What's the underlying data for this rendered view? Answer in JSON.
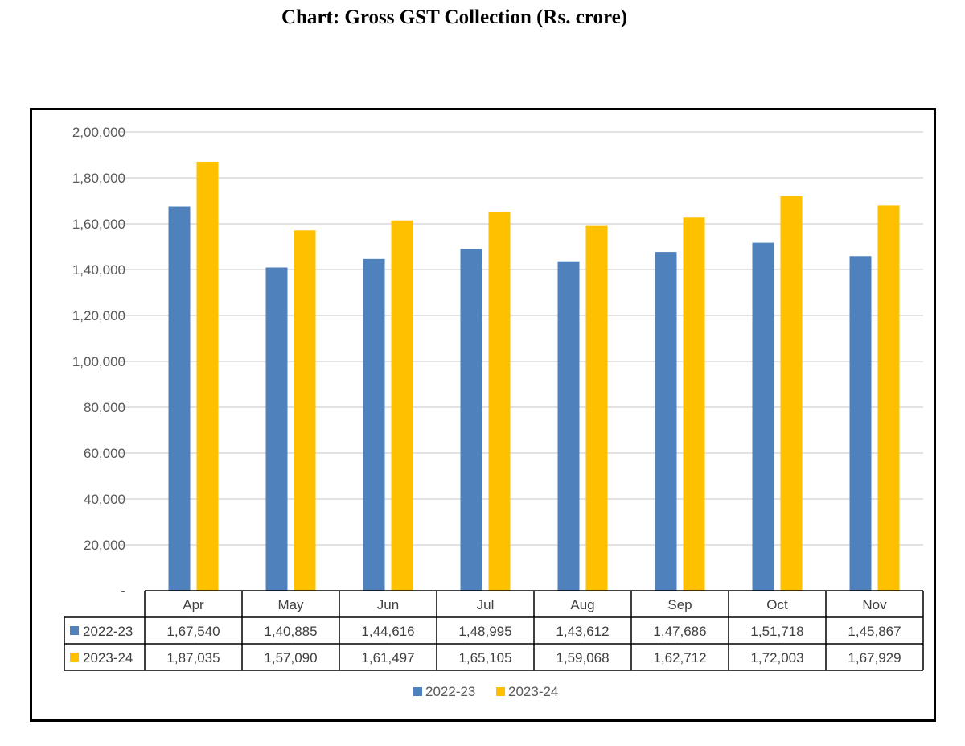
{
  "page": {
    "title": "Chart: Gross GST Collection (Rs. crore)"
  },
  "chart_data": {
    "type": "bar",
    "title": "Chart: Gross GST Collection (Rs. crore)",
    "categories": [
      "Apr",
      "May",
      "Jun",
      "Jul",
      "Aug",
      "Sep",
      "Oct",
      "Nov"
    ],
    "series": [
      {
        "name": "2022-23",
        "color": "#4F81BD",
        "values": [
          167540,
          140885,
          144616,
          148995,
          143612,
          147686,
          151718,
          145867
        ],
        "labels": [
          "1,67,540",
          "1,40,885",
          "1,44,616",
          "1,48,995",
          "1,43,612",
          "1,47,686",
          "1,51,718",
          "1,45,867"
        ]
      },
      {
        "name": "2023-24",
        "color": "#FFC000",
        "values": [
          187035,
          157090,
          161497,
          165105,
          159068,
          162712,
          172003,
          167929
        ],
        "labels": [
          "1,87,035",
          "1,57,090",
          "1,61,497",
          "1,65,105",
          "1,59,068",
          "1,62,712",
          "1,72,003",
          "1,67,929"
        ]
      }
    ],
    "ylim": [
      0,
      200000
    ],
    "yticks": [
      0,
      20000,
      40000,
      60000,
      80000,
      100000,
      120000,
      140000,
      160000,
      180000,
      200000
    ],
    "ytick_labels": [
      "-",
      "20,000",
      "40,000",
      "60,000",
      "80,000",
      "1,00,000",
      "1,20,000",
      "1,40,000",
      "1,60,000",
      "1,80,000",
      "2,00,000"
    ],
    "grid": true,
    "data_table": true,
    "legend_position": "bottom",
    "gridline_color": "#D9D9D9"
  }
}
